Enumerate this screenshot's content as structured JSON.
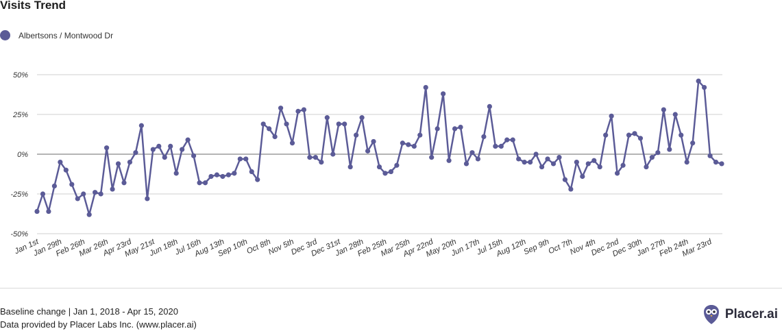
{
  "colors": {
    "series": "#5b5b97",
    "grid": "#cfcfcf",
    "zero": "#888888"
  },
  "footer": {
    "line1": "Baseline change | Jan 1, 2018 - Apr 15, 2020",
    "line2": "Data provided by Placer Labs Inc. (www.placer.ai)"
  },
  "brand": {
    "name": "Placer.ai",
    "icon": "owl-logo-icon"
  },
  "chart_data": {
    "type": "line",
    "title": "Visits Trend",
    "xlabel": "",
    "ylabel": "",
    "ylim": [
      -50,
      50
    ],
    "y_ticks": [
      50,
      25,
      0,
      -25,
      -50
    ],
    "y_tick_labels": [
      "50%",
      "25%",
      "0%",
      "-25%",
      "-50%"
    ],
    "x_ticks": [
      {
        "index": 0,
        "label": "Jan 1st"
      },
      {
        "index": 4,
        "label": "Jan 29th"
      },
      {
        "index": 8,
        "label": "Feb 26th"
      },
      {
        "index": 12,
        "label": "Mar 26th"
      },
      {
        "index": 16,
        "label": "Apr 23rd"
      },
      {
        "index": 20,
        "label": "May 21st"
      },
      {
        "index": 24,
        "label": "Jun 18th"
      },
      {
        "index": 28,
        "label": "Jul 16th"
      },
      {
        "index": 32,
        "label": "Aug 13th"
      },
      {
        "index": 36,
        "label": "Sep 10th"
      },
      {
        "index": 40,
        "label": "Oct 8th"
      },
      {
        "index": 44,
        "label": "Nov 5th"
      },
      {
        "index": 48,
        "label": "Dec 3rd"
      },
      {
        "index": 52,
        "label": "Dec 31st"
      },
      {
        "index": 56,
        "label": "Jan 28th"
      },
      {
        "index": 60,
        "label": "Feb 25th"
      },
      {
        "index": 64,
        "label": "Mar 25th"
      },
      {
        "index": 68,
        "label": "Apr 22nd"
      },
      {
        "index": 72,
        "label": "May 20th"
      },
      {
        "index": 76,
        "label": "Jun 17th"
      },
      {
        "index": 80,
        "label": "Jul 15th"
      },
      {
        "index": 84,
        "label": "Aug 12th"
      },
      {
        "index": 88,
        "label": "Sep 9th"
      },
      {
        "index": 92,
        "label": "Oct 7th"
      },
      {
        "index": 96,
        "label": "Nov 4th"
      },
      {
        "index": 100,
        "label": "Dec 2nd"
      },
      {
        "index": 104,
        "label": "Dec 30th"
      },
      {
        "index": 108,
        "label": "Jan 27th"
      },
      {
        "index": 112,
        "label": "Feb 24th"
      },
      {
        "index": 116,
        "label": "Mar 23rd"
      }
    ],
    "series": [
      {
        "name": "Albertsons / Montwood Dr",
        "values": [
          -36,
          -25,
          -36,
          -20,
          -5,
          -10,
          -19,
          -28,
          -25,
          -38,
          -24,
          -25,
          4,
          -22,
          -6,
          -18,
          -5,
          1,
          18,
          -28,
          3,
          5,
          -2,
          5,
          -12,
          3,
          9,
          -1,
          -18,
          -18,
          -14,
          -13,
          -14,
          -13,
          -12,
          -3,
          -3,
          -11,
          -16,
          19,
          16,
          11,
          29,
          19,
          7,
          27,
          28,
          -2,
          -2,
          -5,
          23,
          0,
          19,
          19,
          -8,
          12,
          23,
          2,
          8,
          -8,
          -12,
          -11,
          -7,
          7,
          6,
          5,
          12,
          42,
          -2,
          16,
          38,
          -4,
          16,
          17,
          -6,
          1,
          -3,
          11,
          30,
          5,
          5,
          9,
          9,
          -3,
          -5,
          -5,
          0,
          -8,
          -3,
          -6,
          -2,
          -16,
          -22,
          -5,
          -14,
          -6,
          -4,
          -8,
          12,
          24,
          -12,
          -7,
          12,
          13,
          10,
          -8,
          -2,
          1,
          28,
          3,
          25,
          12,
          -5,
          7,
          46,
          42,
          -1,
          -5,
          -6
        ]
      }
    ]
  }
}
